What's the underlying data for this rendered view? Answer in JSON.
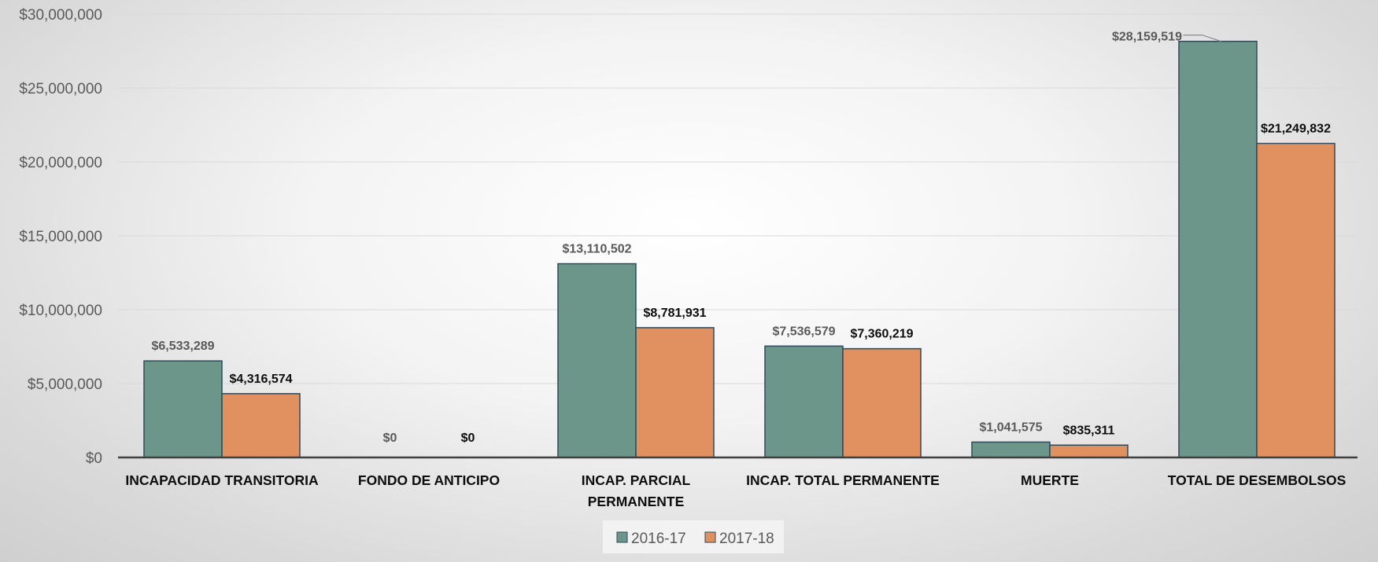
{
  "chart_data": {
    "type": "bar",
    "categories": [
      [
        "INCAPACIDAD TRANSITORIA"
      ],
      [
        "FONDO DE ANTICIPO"
      ],
      [
        "INCAP. PARCIAL",
        "PERMANENTE"
      ],
      [
        "INCAP. TOTAL PERMANENTE"
      ],
      [
        "MUERTE"
      ],
      [
        "TOTAL DE DESEMBOLSOS"
      ]
    ],
    "series": [
      {
        "name": "2016-17",
        "color": "#6d968a",
        "values": [
          6533289,
          0,
          13110502,
          7536579,
          1041575,
          28159519
        ],
        "labels": [
          "$6,533,289",
          "$0",
          "$13,110,502",
          "$7,536,579",
          "$1,041,575",
          "$28,159,519"
        ]
      },
      {
        "name": "2017-18",
        "color": "#e0915f",
        "values": [
          4316574,
          0,
          8781931,
          7360219,
          835311,
          21249832
        ],
        "labels": [
          "$4,316,574",
          "$0",
          "$8,781,931",
          "$7,360,219",
          "$835,311",
          "$21,249,832"
        ]
      }
    ],
    "ylim": [
      0,
      30000000
    ],
    "y_ticks": [
      0,
      5000000,
      10000000,
      15000000,
      20000000,
      25000000,
      30000000
    ],
    "y_tick_labels": [
      "$0",
      "$5,000,000",
      "$10,000,000",
      "$15,000,000",
      "$20,000,000",
      "$25,000,000",
      "$30,000,000"
    ],
    "grid": true,
    "legend_position": "bottom"
  }
}
